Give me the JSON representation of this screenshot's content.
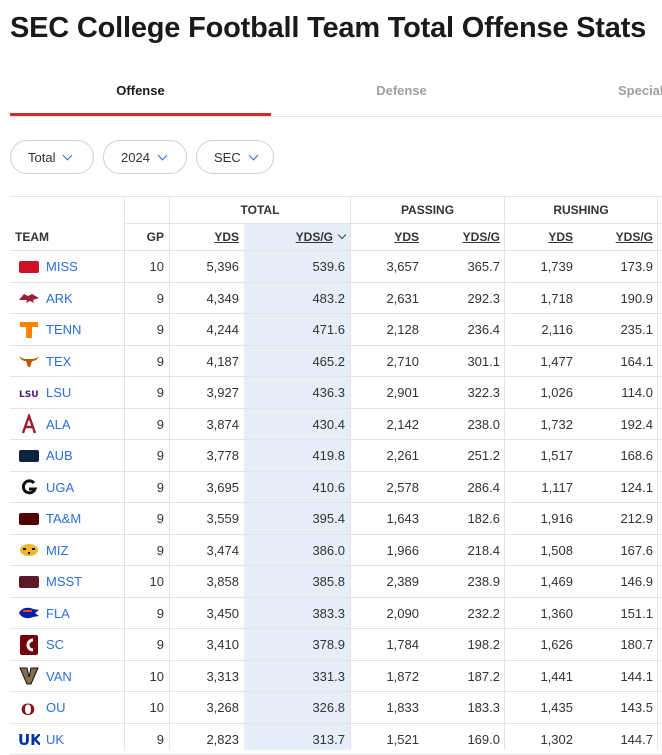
{
  "page": {
    "title": "SEC College Football Team Total Offense Stats"
  },
  "tabs": [
    {
      "label": "Offense",
      "active": true
    },
    {
      "label": "Defense",
      "active": false
    },
    {
      "label": "Special",
      "active": false
    }
  ],
  "filters": [
    {
      "name": "stat-type",
      "value": "Total"
    },
    {
      "name": "season",
      "value": "2024"
    },
    {
      "name": "conference",
      "value": "SEC"
    }
  ],
  "table": {
    "groups": {
      "total": "TOTAL",
      "passing": "PASSING",
      "rushing": "RUSHING"
    },
    "columns": {
      "team": "TEAM",
      "gp": "GP",
      "total_yds": "YDS",
      "total_ydsg": "YDS/G",
      "pass_yds": "YDS",
      "pass_ydsg": "YDS/G",
      "rush_yds": "YDS",
      "rush_ydsg": "YDS/G"
    },
    "sorted_column": "total_ydsg",
    "rows": [
      {
        "team": "MISS",
        "logo": "ole-miss-logo",
        "color": "#ce1126",
        "gp": "10",
        "total_yds": "5,396",
        "total_ydsg": "539.6",
        "pass_yds": "3,657",
        "pass_ydsg": "365.7",
        "rush_yds": "1,739",
        "rush_ydsg": "173.9"
      },
      {
        "team": "ARK",
        "logo": "razorback-logo",
        "color": "#9d2235",
        "gp": "9",
        "total_yds": "4,349",
        "total_ydsg": "483.2",
        "pass_yds": "2,631",
        "pass_ydsg": "292.3",
        "rush_yds": "1,718",
        "rush_ydsg": "190.9"
      },
      {
        "team": "TENN",
        "logo": "power-t-logo",
        "color": "#ff8200",
        "gp": "9",
        "total_yds": "4,244",
        "total_ydsg": "471.6",
        "pass_yds": "2,128",
        "pass_ydsg": "236.4",
        "rush_yds": "2,116",
        "rush_ydsg": "235.1"
      },
      {
        "team": "TEX",
        "logo": "longhorn-logo",
        "color": "#bf5700",
        "gp": "9",
        "total_yds": "4,187",
        "total_ydsg": "465.2",
        "pass_yds": "2,710",
        "pass_ydsg": "301.1",
        "rush_yds": "1,477",
        "rush_ydsg": "164.1"
      },
      {
        "team": "LSU",
        "logo": "lsu-logo",
        "color": "#461d7c",
        "gp": "9",
        "total_yds": "3,927",
        "total_ydsg": "436.3",
        "pass_yds": "2,901",
        "pass_ydsg": "322.3",
        "rush_yds": "1,026",
        "rush_ydsg": "114.0"
      },
      {
        "team": "ALA",
        "logo": "script-a-logo",
        "color": "#9e1b32",
        "gp": "9",
        "total_yds": "3,874",
        "total_ydsg": "430.4",
        "pass_yds": "2,142",
        "pass_ydsg": "238.0",
        "rush_yds": "1,732",
        "rush_ydsg": "192.4"
      },
      {
        "team": "AUB",
        "logo": "au-logo",
        "color": "#0c2340",
        "gp": "9",
        "total_yds": "3,778",
        "total_ydsg": "419.8",
        "pass_yds": "2,261",
        "pass_ydsg": "251.2",
        "rush_yds": "1,517",
        "rush_ydsg": "168.6"
      },
      {
        "team": "UGA",
        "logo": "g-logo",
        "color": "#ba0c2f",
        "gp": "9",
        "total_yds": "3,695",
        "total_ydsg": "410.6",
        "pass_yds": "2,578",
        "pass_ydsg": "286.4",
        "rush_yds": "1,117",
        "rush_ydsg": "124.1"
      },
      {
        "team": "TA&M",
        "logo": "atm-logo",
        "color": "#500000",
        "gp": "9",
        "total_yds": "3,559",
        "total_ydsg": "395.4",
        "pass_yds": "1,643",
        "pass_ydsg": "182.6",
        "rush_yds": "1,916",
        "rush_ydsg": "212.9"
      },
      {
        "team": "MIZ",
        "logo": "tiger-logo",
        "color": "#f1b82d",
        "gp": "9",
        "total_yds": "3,474",
        "total_ydsg": "386.0",
        "pass_yds": "1,966",
        "pass_ydsg": "218.4",
        "rush_yds": "1,508",
        "rush_ydsg": "167.6"
      },
      {
        "team": "MSST",
        "logo": "msst-logo",
        "color": "#5d1725",
        "gp": "10",
        "total_yds": "3,858",
        "total_ydsg": "385.8",
        "pass_yds": "2,389",
        "pass_ydsg": "238.9",
        "rush_yds": "1,469",
        "rush_ydsg": "146.9"
      },
      {
        "team": "FLA",
        "logo": "gator-logo",
        "color": "#0021a5",
        "gp": "9",
        "total_yds": "3,450",
        "total_ydsg": "383.3",
        "pass_yds": "2,090",
        "pass_ydsg": "232.2",
        "rush_yds": "1,360",
        "rush_ydsg": "151.1"
      },
      {
        "team": "SC",
        "logo": "gamecock-logo",
        "color": "#73000a",
        "gp": "9",
        "total_yds": "3,410",
        "total_ydsg": "378.9",
        "pass_yds": "1,784",
        "pass_ydsg": "198.2",
        "rush_yds": "1,626",
        "rush_ydsg": "180.7"
      },
      {
        "team": "VAN",
        "logo": "v-logo",
        "color": "#866d4b",
        "gp": "10",
        "total_yds": "3,313",
        "total_ydsg": "331.3",
        "pass_yds": "1,872",
        "pass_ydsg": "187.2",
        "rush_yds": "1,441",
        "rush_ydsg": "144.1"
      },
      {
        "team": "OU",
        "logo": "ou-logo",
        "color": "#841617",
        "gp": "10",
        "total_yds": "3,268",
        "total_ydsg": "326.8",
        "pass_yds": "1,833",
        "pass_ydsg": "183.3",
        "rush_yds": "1,435",
        "rush_ydsg": "143.5"
      },
      {
        "team": "UK",
        "logo": "uk-logo",
        "color": "#0033a0",
        "gp": "9",
        "total_yds": "2,823",
        "total_ydsg": "313.7",
        "pass_yds": "1,521",
        "pass_ydsg": "169.0",
        "rush_yds": "1,302",
        "rush_ydsg": "144.7"
      }
    ]
  }
}
